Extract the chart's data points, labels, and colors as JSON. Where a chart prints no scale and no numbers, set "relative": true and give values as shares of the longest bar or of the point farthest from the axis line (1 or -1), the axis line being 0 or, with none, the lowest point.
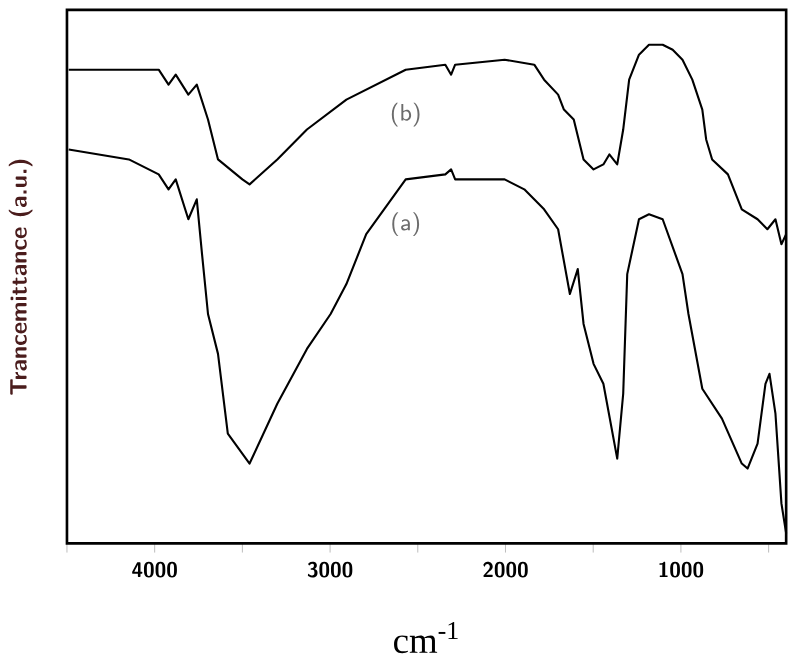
{
  "chart_data": {
    "type": "line",
    "relative": true,
    "xlabel": "cm$^{-1}$",
    "ylabel": "Trancemittance (a.u.)",
    "xlim": [
      4500,
      400
    ],
    "xticks": [
      {
        "value": 4500,
        "label": null
      },
      4000,
      {
        "value": 3500,
        "label": null
      },
      3000,
      {
        "value": 2500,
        "label": null
      },
      2000,
      {
        "value": 1500,
        "label": null
      },
      1000,
      {
        "value": 500,
        "label": null
      }
    ],
    "tick_labels": "x",
    "series": [
      {
        "name": "(b)",
        "color": "#000000",
        "x": [
          4490,
          3977,
          3921,
          3880,
          3808,
          3760,
          3696,
          3639,
          3500,
          3459,
          3301,
          3132,
          2907,
          2569,
          2343,
          2310,
          2287,
          2005,
          1836,
          1780,
          1700,
          1667,
          1611,
          1555,
          1498,
          1442,
          1408,
          1363,
          1329,
          1295,
          1239,
          1182,
          1104,
          1047,
          991,
          935,
          878,
          856,
          822,
          732,
          653,
          563,
          507,
          461,
          427,
          400
        ],
        "values": [
          0.95,
          0.95,
          0.92,
          0.94,
          0.9,
          0.92,
          0.85,
          0.77,
          0.73,
          0.72,
          0.77,
          0.83,
          0.89,
          0.95,
          0.96,
          0.94,
          0.96,
          0.97,
          0.96,
          0.93,
          0.9,
          0.87,
          0.85,
          0.77,
          0.75,
          0.76,
          0.78,
          0.76,
          0.83,
          0.93,
          0.98,
          1.0,
          1.0,
          0.99,
          0.97,
          0.93,
          0.87,
          0.81,
          0.77,
          0.74,
          0.67,
          0.65,
          0.63,
          0.65,
          0.6,
          0.62
        ]
      },
      {
        "name": "(a)",
        "color": "#000000",
        "x": [
          4490,
          4147,
          3977,
          3921,
          3880,
          3808,
          3760,
          3730,
          3696,
          3639,
          3583,
          3459,
          3301,
          3132,
          2997,
          2907,
          2794,
          2569,
          2343,
          2310,
          2287,
          2005,
          1893,
          1780,
          1700,
          1633,
          1588,
          1555,
          1498,
          1442,
          1363,
          1329,
          1306,
          1239,
          1182,
          1104,
          991,
          957,
          878,
          766,
          653,
          620,
          563,
          518,
          495,
          461,
          427,
          400
        ],
        "values": [
          0.79,
          0.77,
          0.74,
          0.71,
          0.73,
          0.65,
          0.69,
          0.58,
          0.46,
          0.38,
          0.22,
          0.16,
          0.28,
          0.39,
          0.46,
          0.52,
          0.62,
          0.73,
          0.74,
          0.75,
          0.73,
          0.73,
          0.71,
          0.67,
          0.63,
          0.5,
          0.55,
          0.44,
          0.36,
          0.32,
          0.17,
          0.3,
          0.54,
          0.65,
          0.66,
          0.65,
          0.54,
          0.46,
          0.31,
          0.25,
          0.16,
          0.15,
          0.2,
          0.32,
          0.34,
          0.26,
          0.08,
          0.02
        ]
      }
    ]
  }
}
